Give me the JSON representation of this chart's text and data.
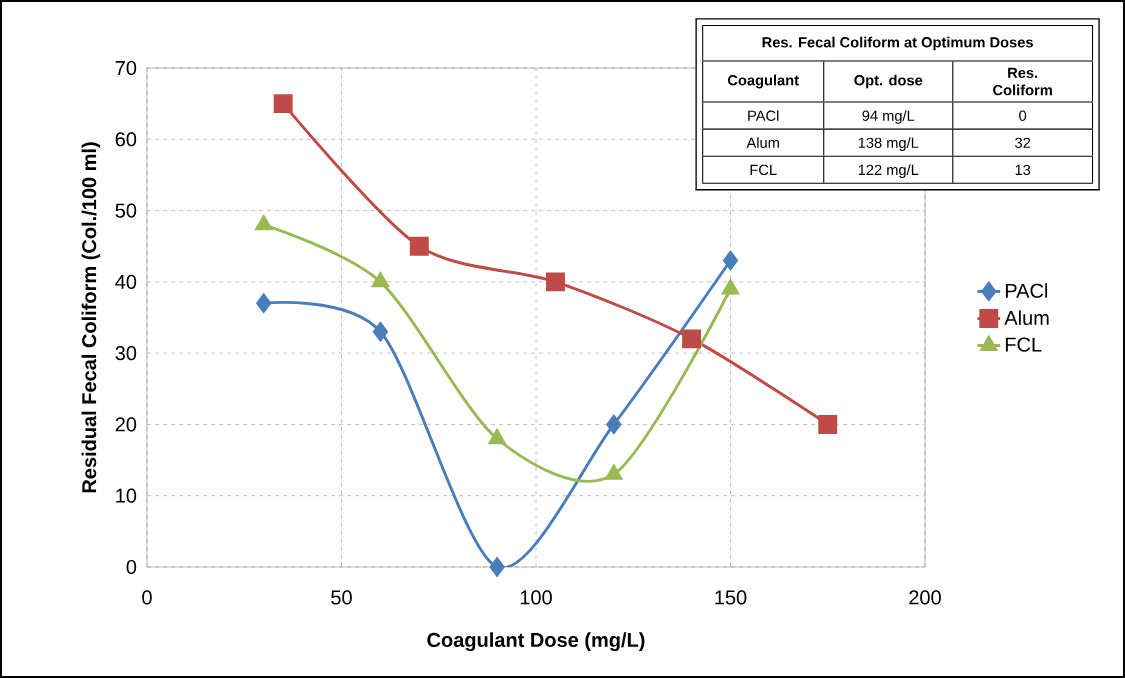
{
  "chart_data": [
    {
      "type": "line",
      "xlabel": "Coagulant Dose (mg/L)",
      "ylabel": "Residual Fecal Coliform (Col./100 ml)",
      "xlim": [
        0,
        200
      ],
      "xticks": [
        0,
        50,
        100,
        150,
        200
      ],
      "ylim": [
        0,
        70
      ],
      "yticks": [
        0,
        10,
        20,
        30,
        40,
        50,
        60,
        70
      ],
      "grid": true,
      "legend": "right",
      "line_style": "solid",
      "series": [
        {
          "name": "PACl",
          "color": "#4a7ebb",
          "marker": "diamond",
          "x": [
            30,
            60,
            90,
            120,
            150
          ],
          "values": [
            37,
            33,
            0,
            20,
            43
          ]
        },
        {
          "name": "Alum",
          "color": "#be4b48",
          "marker": "square",
          "x": [
            35,
            70,
            105,
            140,
            175
          ],
          "values": [
            65,
            45,
            40,
            32,
            20
          ]
        },
        {
          "name": "FCL",
          "color": "#98b954",
          "marker": "triangle",
          "x": [
            30,
            60,
            90,
            120,
            150
          ],
          "values": [
            48,
            40,
            18,
            13,
            39
          ]
        }
      ]
    },
    {
      "type": "other",
      "title": "Res. Fecal Coliform at Optimum  Doses",
      "annotations": [
        "Coagulant",
        "Opt. dose",
        "Res. Coliform",
        "PACl",
        "94 mg/L",
        "0",
        "Alum",
        "138 mg/L",
        "32",
        "FCL",
        "122 mg/L",
        "13"
      ]
    }
  ]
}
